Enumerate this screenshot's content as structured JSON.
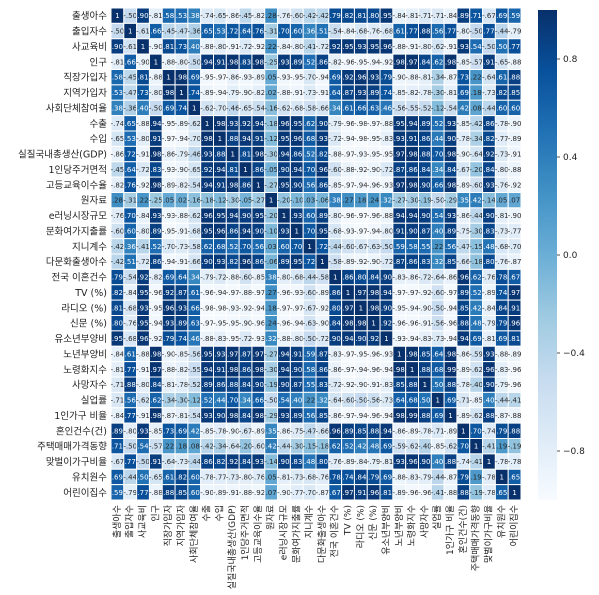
{
  "chart_data": {
    "type": "heatmap",
    "title": "",
    "xlabel": "",
    "ylabel": "",
    "labels": [
      "출생아수",
      "출입자수",
      "사교육비",
      "인구",
      "직장가입자",
      "지역가입자",
      "사회단체참여율",
      "수출",
      "수입",
      "실질국내총생산(GDP)",
      "1인당주거면적",
      "고등교육이수율",
      "원자료",
      "e러닝시장규모",
      "문화여가지출률",
      "지니계수",
      "다문화출생아수",
      "전국 이혼건수",
      "TV (%)",
      "라디오 (%)",
      "신문 (%)",
      "유소년부양비",
      "노년부양비",
      "노령화지수",
      "사망자수",
      "실업률",
      "1인가구 비율",
      "혼인건수(건)",
      "주택매매가격동향",
      "맞벌이가구비율",
      "유치원수",
      "어린이집수"
    ],
    "colorbar": {
      "ticks": [
        0.8,
        0.4,
        0.0,
        -0.4,
        -0.8
      ],
      "tick_labels": [
        "0.8",
        "0.4",
        "0.0",
        "−0.4",
        "−0.8"
      ],
      "range": [
        -1.0,
        1.0
      ]
    },
    "colormap": "Blues",
    "matrix": [
      [
        1.0,
        -0.5,
        0.9,
        -0.81,
        0.58,
        0.53,
        0.38,
        -0.74,
        -0.65,
        -0.86,
        -0.45,
        -0.82,
        0.28,
        -0.76,
        -0.6,
        -0.42,
        -0.42,
        0.79,
        0.82,
        0.81,
        0.8,
        0.95,
        -0.84,
        -0.81,
        -0.71,
        -0.71,
        -0.84,
        0.89,
        0.71,
        -0.67,
        0.69,
        0.59
      ],
      [
        -0.5,
        1.0,
        -0.61,
        0.66,
        -0.45,
        -0.47,
        -0.36,
        0.65,
        0.53,
        0.72,
        0.64,
        0.76,
        -0.31,
        0.7,
        0.6,
        0.36,
        0.51,
        -0.54,
        -0.84,
        -0.68,
        -0.76,
        -0.68,
        0.61,
        0.77,
        0.88,
        0.56,
        0.77,
        -0.8,
        -0.5,
        0.77,
        -0.44,
        -0.79
      ],
      [
        0.9,
        -0.61,
        1.0,
        -0.9,
        0.81,
        0.73,
        0.4,
        -0.88,
        -0.8,
        -0.91,
        -0.72,
        -0.92,
        0.22,
        -0.84,
        -0.8,
        -0.41,
        -0.72,
        0.92,
        0.95,
        0.93,
        0.95,
        0.96,
        -0.88,
        -0.91,
        -0.8,
        -0.62,
        -0.91,
        0.93,
        0.54,
        -0.5,
        0.5,
        0.77
      ],
      [
        -0.81,
        0.66,
        -0.9,
        1.0,
        -0.88,
        -0.8,
        -0.5,
        0.94,
        0.91,
        0.98,
        0.83,
        0.98,
        -0.25,
        0.93,
        0.89,
        0.52,
        0.86,
        -0.82,
        -0.96,
        -0.95,
        -0.94,
        -0.92,
        0.98,
        0.97,
        0.84,
        0.62,
        0.98,
        -0.85,
        -0.57,
        0.91,
        -0.65,
        -0.88
      ],
      [
        0.58,
        -0.45,
        0.81,
        -0.88,
        1.0,
        0.98,
        0.69,
        -0.95,
        -0.97,
        -0.86,
        -0.93,
        -0.89,
        0.05,
        -0.93,
        -0.95,
        -0.7,
        -0.94,
        0.69,
        0.92,
        0.96,
        0.93,
        0.79,
        -0.9,
        -0.88,
        -0.81,
        -0.34,
        -0.87,
        0.73,
        0.22,
        -0.64,
        0.61,
        0.88
      ],
      [
        0.53,
        -0.47,
        0.73,
        -0.8,
        0.98,
        1.0,
        0.74,
        -0.89,
        -0.94,
        -0.79,
        -0.9,
        -0.82,
        0.02,
        -0.88,
        -0.91,
        -0.73,
        -0.91,
        0.64,
        0.87,
        0.93,
        0.89,
        0.74,
        -0.85,
        -0.82,
        -0.78,
        -0.3,
        -0.81,
        0.69,
        0.18,
        -0.73,
        0.82,
        0.85
      ],
      [
        0.38,
        -0.36,
        0.4,
        -0.5,
        0.69,
        0.74,
        1.0,
        -0.62,
        -0.7,
        -0.46,
        -0.65,
        -0.54,
        -0.16,
        -0.62,
        -0.68,
        -0.58,
        -0.66,
        0.34,
        0.61,
        0.66,
        0.63,
        0.46,
        -0.56,
        -0.55,
        -0.52,
        -0.12,
        -0.54,
        0.42,
        0.08,
        -0.44,
        0.6,
        0.6
      ],
      [
        -0.74,
        0.65,
        -0.88,
        0.94,
        -0.95,
        -0.89,
        -0.62,
        1.0,
        0.98,
        0.93,
        0.92,
        0.94,
        -0.18,
        0.96,
        0.95,
        0.62,
        0.9,
        -0.79,
        -0.96,
        -0.98,
        -0.97,
        -0.88,
        0.95,
        0.94,
        0.89,
        0.52,
        0.93,
        -0.85,
        -0.42,
        0.86,
        -0.78,
        -0.9
      ],
      [
        -0.65,
        0.53,
        -0.8,
        0.91,
        -0.97,
        -0.94,
        -0.7,
        0.98,
        1.0,
        0.88,
        0.94,
        0.91,
        -0.12,
        0.95,
        0.96,
        0.68,
        0.93,
        -0.72,
        -0.94,
        -0.98,
        -0.95,
        -0.83,
        0.93,
        0.91,
        0.86,
        0.44,
        0.9,
        -0.78,
        -0.34,
        0.82,
        -0.77,
        -0.89
      ],
      [
        -0.86,
        0.72,
        -0.91,
        0.98,
        -0.86,
        -0.79,
        -0.46,
        0.93,
        0.88,
        1.0,
        0.81,
        0.98,
        -0.3,
        0.94,
        0.86,
        0.52,
        0.82,
        -0.88,
        -0.97,
        -0.93,
        -0.95,
        -0.95,
        0.97,
        0.98,
        0.88,
        0.7,
        0.98,
        -0.9,
        -0.64,
        0.92,
        -0.73,
        -0.91
      ],
      [
        -0.45,
        0.64,
        -0.72,
        0.83,
        -0.93,
        -0.9,
        -0.65,
        0.92,
        0.94,
        0.81,
        1.0,
        0.86,
        -0.05,
        0.9,
        0.94,
        0.7,
        0.96,
        -0.6,
        -0.88,
        -0.92,
        -0.9,
        -0.72,
        0.87,
        0.86,
        0.84,
        0.34,
        0.84,
        -0.67,
        -0.2,
        0.84,
        -0.8,
        -0.88
      ],
      [
        -0.82,
        0.76,
        -0.92,
        0.98,
        -0.89,
        -0.82,
        -0.54,
        0.94,
        0.91,
        0.98,
        0.86,
        1.0,
        -0.27,
        0.95,
        0.9,
        0.56,
        0.86,
        -0.85,
        -0.97,
        -0.94,
        -0.96,
        -0.93,
        0.97,
        0.98,
        0.9,
        0.66,
        0.98,
        -0.89,
        -0.6,
        0.93,
        -0.76,
        -0.92
      ],
      [
        0.28,
        -0.31,
        0.22,
        -0.25,
        0.05,
        0.02,
        -0.16,
        -0.18,
        -0.12,
        -0.3,
        -0.05,
        -0.27,
        1.0,
        -0.2,
        -0.1,
        0.03,
        -0.06,
        0.38,
        0.27,
        0.18,
        0.24,
        0.32,
        -0.27,
        -0.3,
        -0.19,
        -0.5,
        -0.29,
        0.35,
        0.42,
        -0.14,
        0.05,
        0.07
      ],
      [
        -0.76,
        0.7,
        -0.84,
        0.93,
        -0.93,
        -0.88,
        -0.62,
        0.96,
        0.95,
        0.94,
        0.9,
        0.95,
        -0.2,
        1.0,
        0.93,
        0.6,
        0.89,
        -0.8,
        -0.96,
        -0.97,
        -0.96,
        -0.88,
        0.94,
        0.94,
        0.9,
        0.54,
        0.93,
        -0.86,
        -0.44,
        0.9,
        -0.81,
        -0.9
      ],
      [
        -0.6,
        0.6,
        -0.8,
        0.89,
        -0.95,
        -0.91,
        -0.68,
        0.95,
        0.96,
        0.86,
        0.94,
        0.9,
        -0.1,
        0.93,
        1.0,
        0.7,
        0.95,
        -0.68,
        -0.93,
        -0.97,
        -0.94,
        -0.8,
        0.91,
        0.9,
        0.87,
        0.4,
        0.89,
        -0.75,
        -0.3,
        0.83,
        -0.73,
        -0.77
      ],
      [
        -0.42,
        0.36,
        -0.41,
        0.52,
        -0.7,
        -0.73,
        -0.58,
        0.62,
        0.68,
        0.52,
        0.7,
        0.56,
        0.03,
        0.6,
        0.7,
        1.0,
        0.72,
        -0.44,
        -0.6,
        -0.67,
        -0.63,
        -0.5,
        0.59,
        0.58,
        0.55,
        0.22,
        0.56,
        -0.47,
        -0.15,
        0.48,
        -0.68,
        -0.7
      ],
      [
        -0.42,
        0.51,
        -0.72,
        0.86,
        -0.94,
        -0.91,
        -0.66,
        0.9,
        0.93,
        0.82,
        0.96,
        0.86,
        -0.06,
        0.89,
        0.95,
        0.72,
        1.0,
        -0.58,
        -0.89,
        -0.92,
        -0.9,
        -0.72,
        0.87,
        0.86,
        0.83,
        0.32,
        0.85,
        -0.66,
        -0.18,
        0.8,
        -0.76,
        -0.87
      ],
      [
        0.79,
        -0.54,
        0.92,
        -0.82,
        0.69,
        0.64,
        0.34,
        -0.79,
        -0.72,
        -0.88,
        -0.6,
        -0.85,
        0.38,
        -0.8,
        -0.68,
        -0.44,
        -0.58,
        1.0,
        0.86,
        0.8,
        0.84,
        0.9,
        -0.83,
        -0.86,
        -0.72,
        -0.64,
        -0.86,
        0.96,
        0.62,
        -0.76,
        0.78,
        0.67
      ],
      [
        0.82,
        -0.84,
        0.95,
        -0.96,
        0.92,
        0.87,
        0.61,
        -0.96,
        -0.94,
        -0.97,
        -0.88,
        -0.97,
        0.27,
        -0.96,
        -0.93,
        -0.6,
        -0.89,
        0.86,
        1.0,
        0.97,
        0.98,
        0.94,
        -0.97,
        -0.97,
        -0.92,
        -0.6,
        -0.97,
        0.89,
        0.52,
        -0.89,
        0.74,
        0.97
      ],
      [
        0.81,
        -0.68,
        0.93,
        -0.95,
        0.96,
        0.93,
        0.66,
        -0.98,
        -0.98,
        -0.93,
        -0.92,
        -0.94,
        0.18,
        -0.97,
        -0.97,
        -0.67,
        -0.92,
        0.8,
        0.97,
        1.0,
        0.98,
        0.9,
        -0.95,
        -0.94,
        -0.9,
        -0.5,
        -0.94,
        0.85,
        0.42,
        -0.84,
        0.84,
        0.91
      ],
      [
        0.8,
        -0.76,
        0.95,
        -0.94,
        0.93,
        0.89,
        0.63,
        -0.97,
        -0.95,
        -0.95,
        -0.9,
        -0.96,
        0.24,
        -0.96,
        -0.94,
        -0.63,
        -0.9,
        0.84,
        0.98,
        0.98,
        1.0,
        0.92,
        -0.96,
        -0.96,
        -0.91,
        -0.56,
        -0.96,
        0.88,
        0.48,
        -0.79,
        0.79,
        0.96
      ],
      [
        0.95,
        -0.68,
        0.96,
        -0.92,
        0.79,
        0.74,
        0.46,
        -0.88,
        -0.83,
        -0.95,
        -0.72,
        -0.93,
        0.32,
        -0.88,
        -0.8,
        -0.5,
        -0.72,
        0.9,
        0.94,
        0.9,
        0.92,
        1.0,
        -0.93,
        -0.94,
        -0.83,
        -0.73,
        -0.94,
        0.94,
        0.69,
        -0.81,
        0.69,
        0.81
      ],
      [
        -0.84,
        0.61,
        -0.88,
        0.98,
        -0.9,
        -0.85,
        -0.56,
        0.95,
        0.93,
        0.97,
        0.87,
        0.97,
        -0.27,
        0.94,
        0.91,
        0.59,
        0.87,
        -0.83,
        -0.97,
        -0.95,
        -0.96,
        -0.93,
        1.0,
        0.98,
        0.85,
        0.64,
        0.98,
        -0.86,
        -0.59,
        0.93,
        -0.88,
        -0.89
      ],
      [
        -0.81,
        0.77,
        -0.91,
        0.97,
        -0.88,
        -0.82,
        -0.55,
        0.94,
        0.91,
        0.98,
        0.86,
        0.98,
        -0.3,
        0.94,
        0.9,
        0.58,
        0.86,
        -0.86,
        -0.97,
        -0.94,
        -0.96,
        -0.94,
        0.98,
        1.0,
        0.88,
        0.68,
        0.99,
        -0.89,
        -0.62,
        0.96,
        -0.83,
        -0.96
      ],
      [
        -0.71,
        0.88,
        -0.8,
        0.84,
        -0.81,
        -0.78,
        -0.52,
        0.89,
        0.86,
        0.88,
        0.84,
        0.9,
        -0.19,
        0.9,
        0.87,
        0.55,
        0.83,
        -0.72,
        -0.92,
        -0.9,
        -0.91,
        -0.83,
        0.85,
        0.88,
        1.0,
        0.5,
        0.88,
        -0.78,
        -0.4,
        0.9,
        -0.79,
        -0.96
      ],
      [
        -0.71,
        0.56,
        -0.62,
        0.62,
        -0.34,
        -0.3,
        -0.12,
        0.52,
        0.44,
        0.7,
        0.34,
        0.66,
        -0.5,
        0.54,
        0.4,
        0.22,
        0.32,
        -0.64,
        -0.6,
        -0.5,
        -0.56,
        -0.73,
        0.64,
        0.68,
        0.5,
        1.0,
        0.69,
        -0.71,
        -0.85,
        0.4,
        -0.44,
        -0.41
      ],
      [
        -0.84,
        0.77,
        -0.91,
        0.98,
        -0.87,
        -0.81,
        -0.54,
        0.93,
        0.9,
        0.98,
        0.84,
        0.98,
        -0.29,
        0.93,
        0.89,
        0.56,
        0.85,
        -0.86,
        -0.97,
        -0.94,
        -0.96,
        -0.94,
        0.98,
        0.99,
        0.88,
        0.69,
        1.0,
        -0.89,
        -0.62,
        0.88,
        -0.87,
        -0.88
      ],
      [
        0.89,
        -0.8,
        0.93,
        -0.85,
        0.73,
        0.69,
        0.42,
        -0.85,
        -0.78,
        -0.9,
        -0.67,
        -0.89,
        0.35,
        -0.86,
        -0.75,
        -0.47,
        -0.66,
        0.96,
        0.89,
        0.85,
        0.88,
        0.94,
        -0.86,
        -0.89,
        -0.78,
        -0.71,
        -0.89,
        1.0,
        0.7,
        -0.74,
        0.79,
        0.88
      ],
      [
        0.71,
        -0.5,
        0.54,
        -0.57,
        0.22,
        0.18,
        0.08,
        -0.42,
        -0.34,
        -0.64,
        -0.2,
        -0.6,
        0.42,
        -0.44,
        -0.3,
        -0.15,
        -0.18,
        0.62,
        0.52,
        0.42,
        0.48,
        0.69,
        -0.59,
        -0.62,
        -0.4,
        -0.85,
        -0.62,
        0.7,
        1.0,
        -0.41,
        0.19,
        -0.19
      ],
      [
        -0.67,
        0.77,
        -0.5,
        0.91,
        -0.64,
        -0.73,
        -0.44,
        0.86,
        0.82,
        0.92,
        0.84,
        0.93,
        -0.14,
        0.9,
        0.83,
        0.48,
        0.8,
        -0.76,
        -0.89,
        -0.84,
        -0.79,
        -0.81,
        0.93,
        0.96,
        0.9,
        0.4,
        0.88,
        -0.74,
        -0.41,
        1.0,
        -0.78,
        -0.78
      ],
      [
        0.69,
        -0.44,
        0.5,
        -0.65,
        0.61,
        0.82,
        0.6,
        -0.78,
        -0.77,
        -0.73,
        -0.8,
        -0.76,
        0.05,
        -0.81,
        -0.73,
        -0.68,
        -0.76,
        0.78,
        0.74,
        0.84,
        0.79,
        0.69,
        -0.88,
        -0.83,
        -0.79,
        -0.44,
        -0.87,
        0.79,
        0.19,
        -0.78,
        1.0,
        0.65
      ],
      [
        0.59,
        -0.79,
        0.77,
        -0.88,
        0.88,
        0.85,
        0.6,
        -0.9,
        -0.89,
        -0.91,
        -0.88,
        -0.92,
        0.07,
        -0.9,
        -0.77,
        -0.7,
        -0.87,
        0.67,
        0.97,
        0.91,
        0.96,
        0.81,
        -0.89,
        -0.96,
        -0.96,
        -0.41,
        -0.88,
        0.88,
        -0.19,
        -0.78,
        0.65,
        1.0
      ]
    ]
  }
}
